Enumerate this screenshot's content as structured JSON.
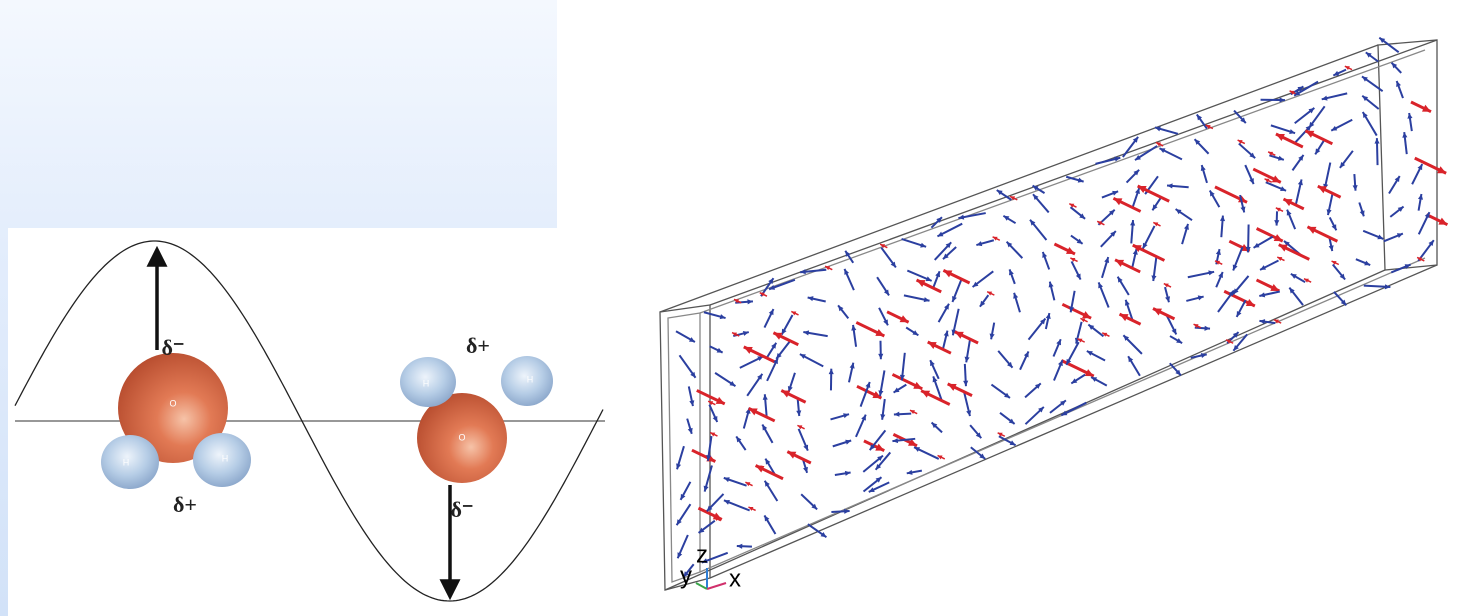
{
  "left_diagram": {
    "molecule_1": {
      "oxygen": "O",
      "hydrogen_left": "H",
      "hydrogen_right": "H",
      "top_charge": "δ⁻",
      "bottom_charge": "δ+"
    },
    "molecule_2": {
      "oxygen": "O",
      "hydrogen_left": "H",
      "hydrogen_right": "H",
      "top_charge": "δ+",
      "bottom_charge": "δ⁻"
    }
  },
  "axes_triad": {
    "y": "y",
    "z": "z",
    "x": "x"
  }
}
